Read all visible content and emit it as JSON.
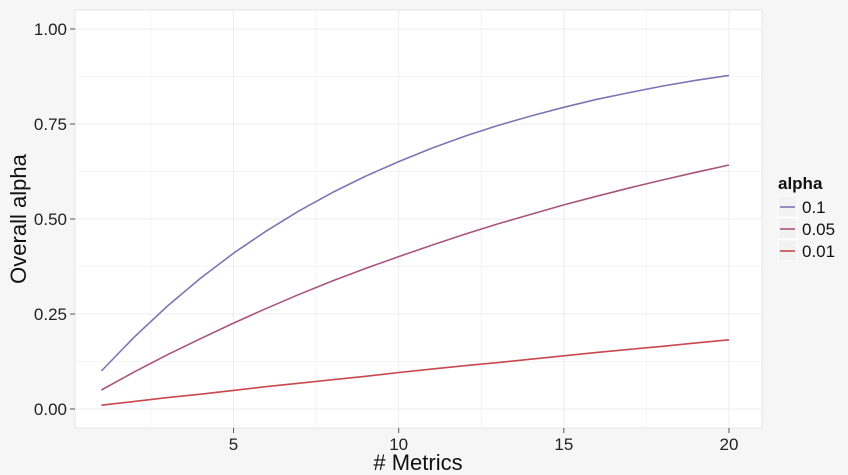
{
  "chart_data": {
    "type": "line",
    "title": "",
    "xlabel": "# Metrics",
    "ylabel": "Overall alpha",
    "xlim": [
      0.2,
      21.0
    ],
    "ylim": [
      -0.05,
      1.05
    ],
    "xticks": [
      5,
      10,
      15,
      20
    ],
    "xtick_labels": [
      "5",
      "10",
      "15",
      "20"
    ],
    "yticks": [
      0.0,
      0.25,
      0.5,
      0.75,
      1.0
    ],
    "ytick_labels": [
      "0.00",
      "0.25",
      "0.50",
      "0.75",
      "1.00"
    ],
    "x": [
      1,
      2,
      3,
      4,
      5,
      6,
      7,
      8,
      9,
      10,
      11,
      12,
      13,
      14,
      15,
      16,
      17,
      18,
      19,
      20
    ],
    "grid": true,
    "legend": {
      "title": "alpha",
      "position": "right"
    },
    "series": [
      {
        "name": "0.1",
        "color": "#7878b4",
        "values": [
          0.1,
          0.19,
          0.271,
          0.344,
          0.41,
          0.469,
          0.522,
          0.57,
          0.613,
          0.651,
          0.686,
          0.718,
          0.746,
          0.771,
          0.794,
          0.815,
          0.833,
          0.85,
          0.865,
          0.878
        ]
      },
      {
        "name": "0.05",
        "color": "#a8557c",
        "values": [
          0.05,
          0.098,
          0.143,
          0.185,
          0.226,
          0.265,
          0.302,
          0.337,
          0.37,
          0.401,
          0.431,
          0.46,
          0.487,
          0.512,
          0.537,
          0.56,
          0.582,
          0.603,
          0.623,
          0.642
        ]
      },
      {
        "name": "0.01",
        "color": "#c8484e",
        "values": [
          0.01,
          0.02,
          0.03,
          0.039,
          0.049,
          0.059,
          0.068,
          0.077,
          0.086,
          0.096,
          0.105,
          0.114,
          0.122,
          0.131,
          0.14,
          0.149,
          0.157,
          0.165,
          0.174,
          0.182
        ]
      }
    ]
  }
}
